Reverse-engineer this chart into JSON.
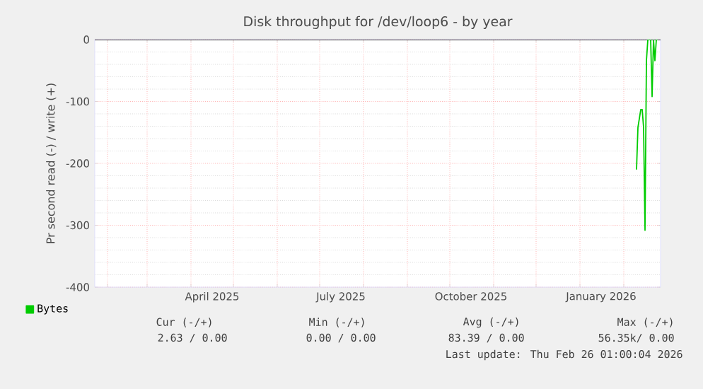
{
  "chart_data": {
    "type": "line",
    "title": "Disk throughput for /dev/loop6 - by year",
    "ylabel": "Pr second read (-) / write (+)",
    "xlim": [
      "2025-01-23",
      "2026-02-27"
    ],
    "xticks": [
      {
        "value": "2025-02-01",
        "label": null
      },
      {
        "value": "2025-03-01",
        "label": null
      },
      {
        "value": "2025-04-01",
        "label": null
      },
      {
        "value": "2025-05-01",
        "label": null
      },
      {
        "value": "2025-06-01",
        "label": null
      },
      {
        "value": "2025-07-01",
        "label": null
      },
      {
        "value": "2025-08-01",
        "label": null
      },
      {
        "value": "2025-09-01",
        "label": null
      },
      {
        "value": "2025-10-01",
        "label": null
      },
      {
        "value": "2025-11-01",
        "label": null
      },
      {
        "value": "2025-12-01",
        "label": null
      },
      {
        "value": "2026-01-01",
        "label": null
      },
      {
        "value": "2026-02-01",
        "label": null
      },
      {
        "value": "2025-04-16",
        "label": "April 2025"
      },
      {
        "value": "2025-07-16",
        "label": "July 2025"
      },
      {
        "value": "2025-10-16",
        "label": "October 2025"
      },
      {
        "value": "2026-01-16",
        "label": "January 2026"
      }
    ],
    "ylim": [
      -400,
      0
    ],
    "yticks": [
      -400,
      -300,
      -200,
      -100,
      0
    ],
    "grid": true,
    "legend": "bottom",
    "marker": "none",
    "line_style": "solid",
    "series": [
      {
        "name": "Bytes",
        "color": "#00cc00",
        "x": [
          "2026-02-10",
          "2026-02-11",
          "2026-02-13",
          "2026-02-14",
          "2026-02-15",
          "2026-02-16",
          "2026-02-17",
          "2026-02-18",
          "2026-02-20",
          "2026-02-21",
          "2026-02-22",
          "2026-02-23",
          "2026-02-24",
          "2026-02-25"
        ],
        "values": [
          -210,
          -142,
          -113,
          -113,
          -142,
          -308,
          -34,
          0,
          0,
          -92,
          0,
          -34,
          0,
          0
        ]
      }
    ],
    "ref_lines": [
      {
        "axis": "y",
        "value": 0,
        "color": "#000000"
      }
    ],
    "annotations": [
      "Cur (-/+)",
      "Min (-/+)",
      "Avg (-/+)",
      "Max (-/+)",
      "2.63 / 0.00",
      "0.00 / 0.00",
      "83.39 / 0.00",
      "56.35k/ 0.00",
      "Last update: Thu Feb 26 01:00:04 2026"
    ]
  }
}
